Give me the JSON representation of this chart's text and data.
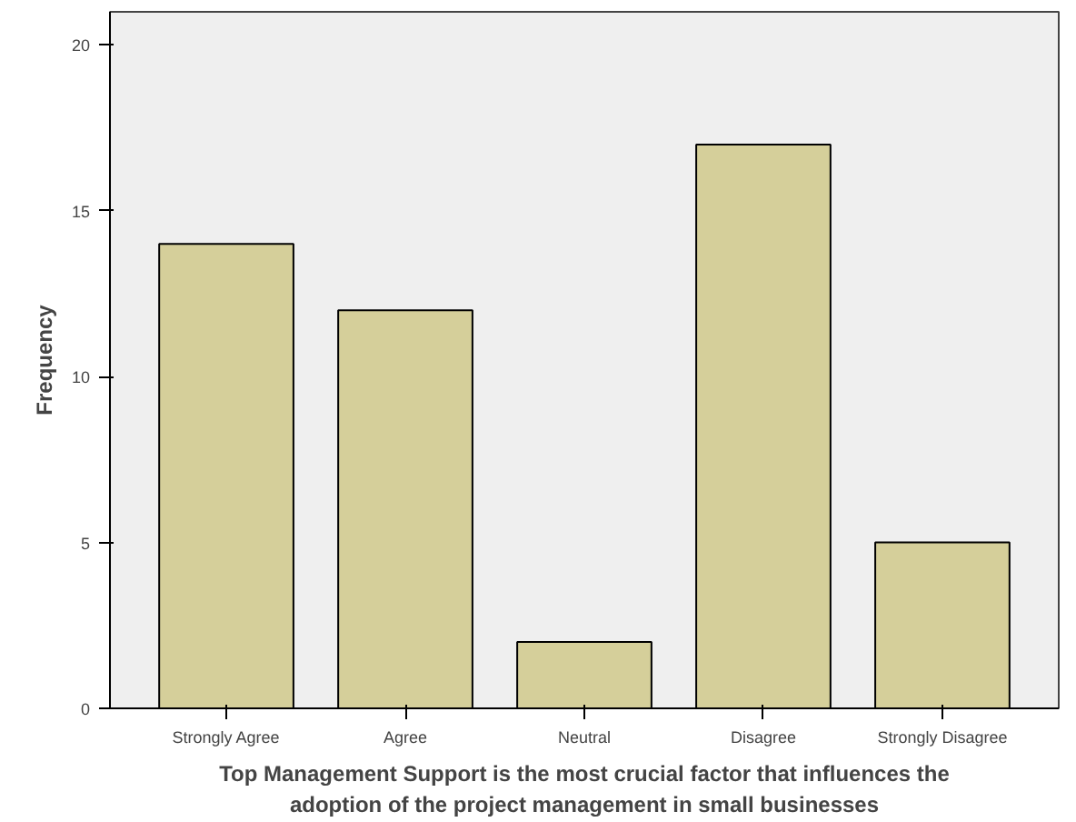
{
  "chart_data": {
    "type": "bar",
    "xlabel": "Top Management Support is the most crucial factor that influences the\nadoption of the project management in small businesses",
    "ylabel": "Frequency",
    "categories": [
      "Strongly Agree",
      "Agree",
      "Neutral",
      "Disagree",
      "Strongly Disagree"
    ],
    "values": [
      14,
      12,
      2,
      17,
      5
    ],
    "color": "#d5cf9a",
    "ylim": [
      0,
      21
    ],
    "yticks": [
      0,
      5,
      10,
      15,
      20
    ],
    "grid": false
  }
}
